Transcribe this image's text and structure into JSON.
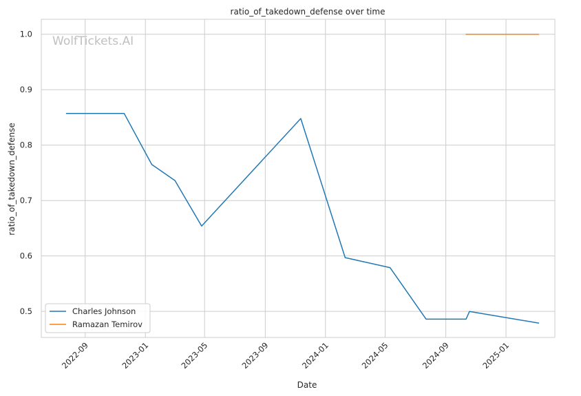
{
  "chart_data": {
    "type": "line",
    "title": "ratio_of_takedown_defense over time",
    "xlabel": "Date",
    "ylabel": "ratio_of_takedown_defense",
    "watermark": "WolfTickets.AI",
    "x_ticks": [
      "2022-09",
      "2023-01",
      "2023-05",
      "2023-09",
      "2024-01",
      "2024-05",
      "2024-09",
      "2025-01"
    ],
    "y_ticks": [
      "0.5",
      "0.6",
      "0.7",
      "0.8",
      "0.9",
      "1.0"
    ],
    "xlim": [
      "2022-06-04",
      "2025-04-10"
    ],
    "ylim": [
      0.453,
      1.027
    ],
    "grid": true,
    "legend_position": "lower-left",
    "series": [
      {
        "name": "Charles Johnson",
        "color": "#1f77b4",
        "points": [
          {
            "x": "2022-07-25",
            "y": 0.857
          },
          {
            "x": "2022-11-19",
            "y": 0.857
          },
          {
            "x": "2023-01-14",
            "y": 0.765
          },
          {
            "x": "2023-03-02",
            "y": 0.736
          },
          {
            "x": "2023-04-25",
            "y": 0.654
          },
          {
            "x": "2023-11-12",
            "y": 0.848
          },
          {
            "x": "2024-02-10",
            "y": 0.597
          },
          {
            "x": "2024-05-11",
            "y": 0.579
          },
          {
            "x": "2024-07-23",
            "y": 0.486
          },
          {
            "x": "2024-10-12",
            "y": 0.486
          },
          {
            "x": "2024-10-19",
            "y": 0.5
          },
          {
            "x": "2025-03-08",
            "y": 0.479
          }
        ]
      },
      {
        "name": "Ramazan Temirov",
        "color": "#ff7f0e",
        "points": [
          {
            "x": "2024-10-12",
            "y": 1.0
          },
          {
            "x": "2025-03-08",
            "y": 1.0
          }
        ]
      }
    ]
  }
}
